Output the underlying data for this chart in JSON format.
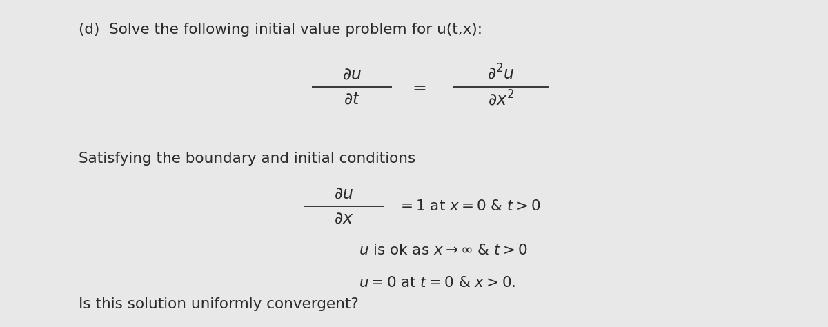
{
  "background_color": "#e8e8e8",
  "text_color": "#2a2a2a",
  "title_text": "(d)  Solve the following initial value problem for u(t,x):",
  "satisfying_text": "Satisfying the boundary and initial conditions",
  "final_text": "Is this solution uniformly convergent?",
  "fontsize": 15.5,
  "math_fontsize": 17
}
